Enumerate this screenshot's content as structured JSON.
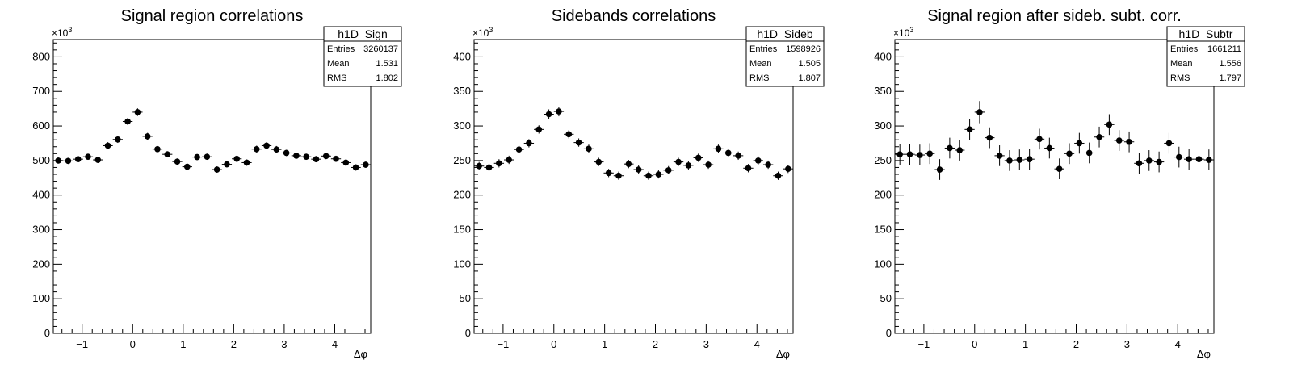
{
  "chart_data": [
    {
      "type": "scatter",
      "title": "Signal region correlations",
      "xlabel": "Δφ",
      "ylabel": "",
      "y_multiplier_label": "×10",
      "y_multiplier_exp": "3",
      "xlim": [
        -1.571,
        4.712
      ],
      "ylim": [
        0,
        850
      ],
      "xticks": [
        -1,
        0,
        1,
        2,
        3,
        4
      ],
      "yticks": [
        0,
        100,
        200,
        300,
        400,
        500,
        600,
        700,
        800
      ],
      "grid": false,
      "stats_box": {
        "name": "h1D_Sign",
        "rows": [
          {
            "label": "Entries",
            "value": "3260137"
          },
          {
            "label": "Mean",
            "value": "1.531"
          },
          {
            "label": "RMS",
            "value": "1.802"
          }
        ]
      },
      "series": [
        {
          "values": [
            500,
            499,
            504,
            511,
            502,
            543,
            561,
            613,
            640,
            570,
            533,
            518,
            497,
            482,
            510,
            511,
            474,
            489,
            505,
            494,
            533,
            543,
            532,
            522,
            514,
            511,
            504,
            513,
            505,
            494,
            480,
            488
          ],
          "errors": [
            9,
            9,
            9,
            9,
            9,
            10,
            10,
            10,
            11,
            10,
            9,
            9,
            9,
            9,
            9,
            9,
            9,
            9,
            9,
            9,
            10,
            10,
            10,
            9,
            9,
            9,
            9,
            9,
            9,
            9,
            9,
            9
          ]
        }
      ]
    },
    {
      "type": "scatter",
      "title": "Sidebands correlations",
      "xlabel": "Δφ",
      "ylabel": "",
      "y_multiplier_label": "×10",
      "y_multiplier_exp": "3",
      "xlim": [
        -1.571,
        4.712
      ],
      "ylim": [
        0,
        425
      ],
      "xticks": [
        -1,
        0,
        1,
        2,
        3,
        4
      ],
      "yticks": [
        0,
        50,
        100,
        150,
        200,
        250,
        300,
        350,
        400
      ],
      "grid": false,
      "stats_box": {
        "name": "h1D_Sideb",
        "rows": [
          {
            "label": "Entries",
            "value": "1598926"
          },
          {
            "label": "Mean",
            "value": "1.505"
          },
          {
            "label": "RMS",
            "value": "1.807"
          }
        ]
      },
      "series": [
        {
          "values": [
            242,
            240,
            246,
            251,
            266,
            275,
            295,
            317,
            321,
            288,
            276,
            267,
            248,
            232,
            228,
            245,
            237,
            228,
            230,
            236,
            248,
            243,
            254,
            244,
            267,
            261,
            257,
            239,
            250,
            244,
            228,
            238
          ],
          "errors": [
            6,
            6,
            6,
            6,
            6,
            6,
            6,
            7,
            7,
            6,
            6,
            6,
            6,
            6,
            6,
            6,
            6,
            6,
            6,
            6,
            6,
            6,
            6,
            6,
            6,
            6,
            6,
            6,
            6,
            6,
            6,
            6
          ]
        }
      ]
    },
    {
      "type": "scatter",
      "title": "Signal region after sideb. subt. corr.",
      "xlabel": "Δφ",
      "ylabel": "",
      "y_multiplier_label": "×10",
      "y_multiplier_exp": "3",
      "xlim": [
        -1.571,
        4.712
      ],
      "ylim": [
        0,
        425
      ],
      "xticks": [
        -1,
        0,
        1,
        2,
        3,
        4
      ],
      "yticks": [
        0,
        50,
        100,
        150,
        200,
        250,
        300,
        350,
        400
      ],
      "grid": false,
      "stats_box": {
        "name": "h1D_Subtr",
        "rows": [
          {
            "label": "Entries",
            "value": "1661211"
          },
          {
            "label": "Mean",
            "value": "1.556"
          },
          {
            "label": "RMS",
            "value": "1.797"
          }
        ]
      },
      "series": [
        {
          "values": [
            259,
            259,
            258,
            260,
            237,
            268,
            265,
            295,
            320,
            283,
            257,
            250,
            251,
            252,
            281,
            268,
            238,
            260,
            275,
            261,
            284,
            302,
            279,
            277,
            246,
            250,
            248,
            275,
            255,
            252,
            252,
            251
          ],
          "errors": [
            15,
            15,
            15,
            15,
            15,
            15,
            15,
            15,
            16,
            15,
            15,
            15,
            15,
            15,
            15,
            15,
            15,
            15,
            15,
            15,
            15,
            15,
            15,
            15,
            15,
            15,
            15,
            15,
            15,
            15,
            15,
            15
          ]
        }
      ]
    }
  ]
}
